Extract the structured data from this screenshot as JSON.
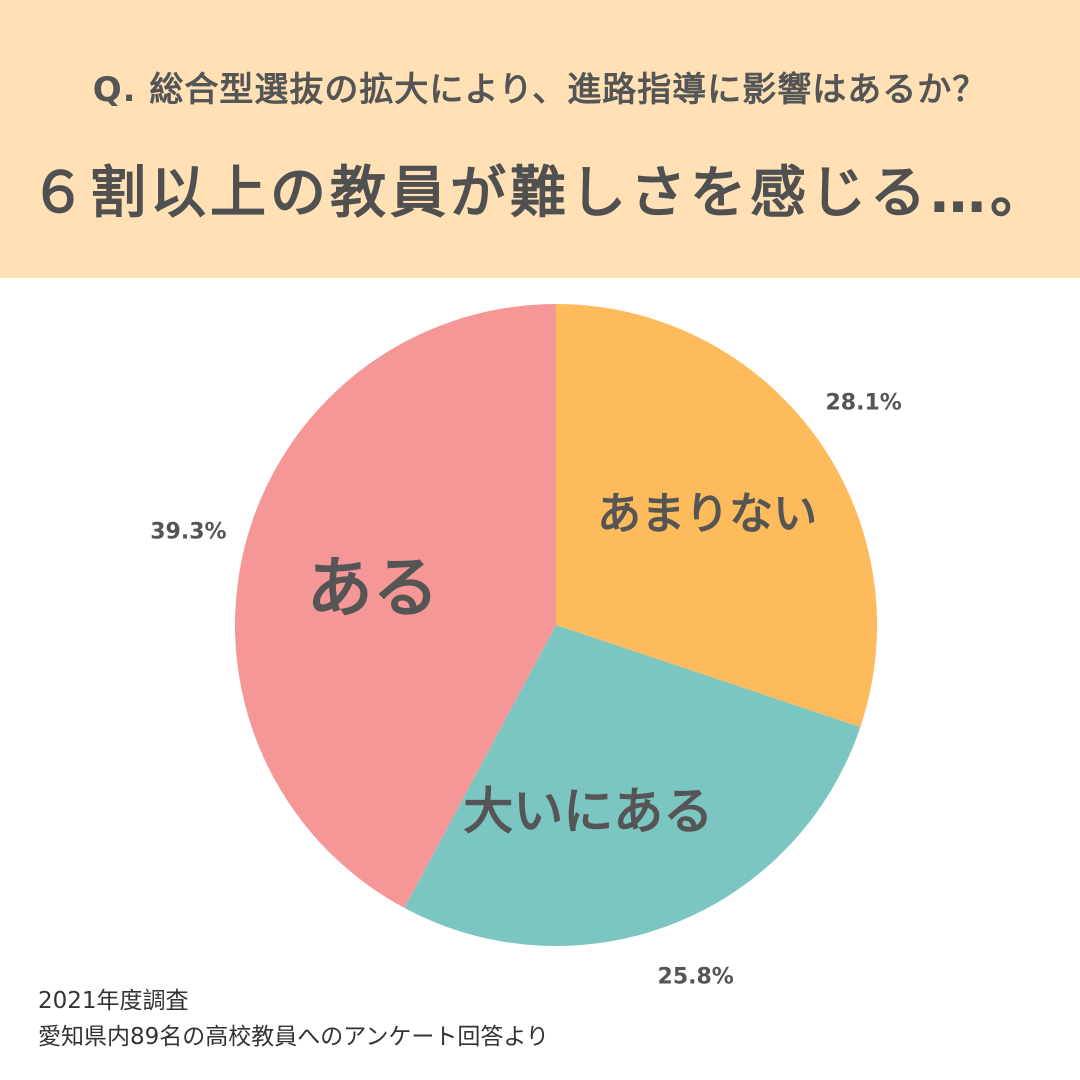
{
  "header": {
    "question": "Q. 総合型選抜の拡大により、進路指導に影響はあるか？",
    "headline": "６割以上の教員が難しさを感じる…。"
  },
  "chart_data": {
    "type": "pie",
    "start_angle_deg": 0,
    "direction": "clockwise",
    "slices": [
      {
        "label": "あまりない",
        "value": 28.1,
        "value_label": "28.1%",
        "color": "#fdbb5c"
      },
      {
        "label": "大いにある",
        "value": 25.8,
        "value_label": "25.8%",
        "color": "#7cc6c2"
      },
      {
        "label": "ある",
        "value": 39.3,
        "value_label": "39.3%",
        "color": "#f69797"
      }
    ]
  },
  "footer": {
    "line1": "2021年度調査",
    "line2": "愛知県内89名の高校教員へのアンケート回答より"
  }
}
